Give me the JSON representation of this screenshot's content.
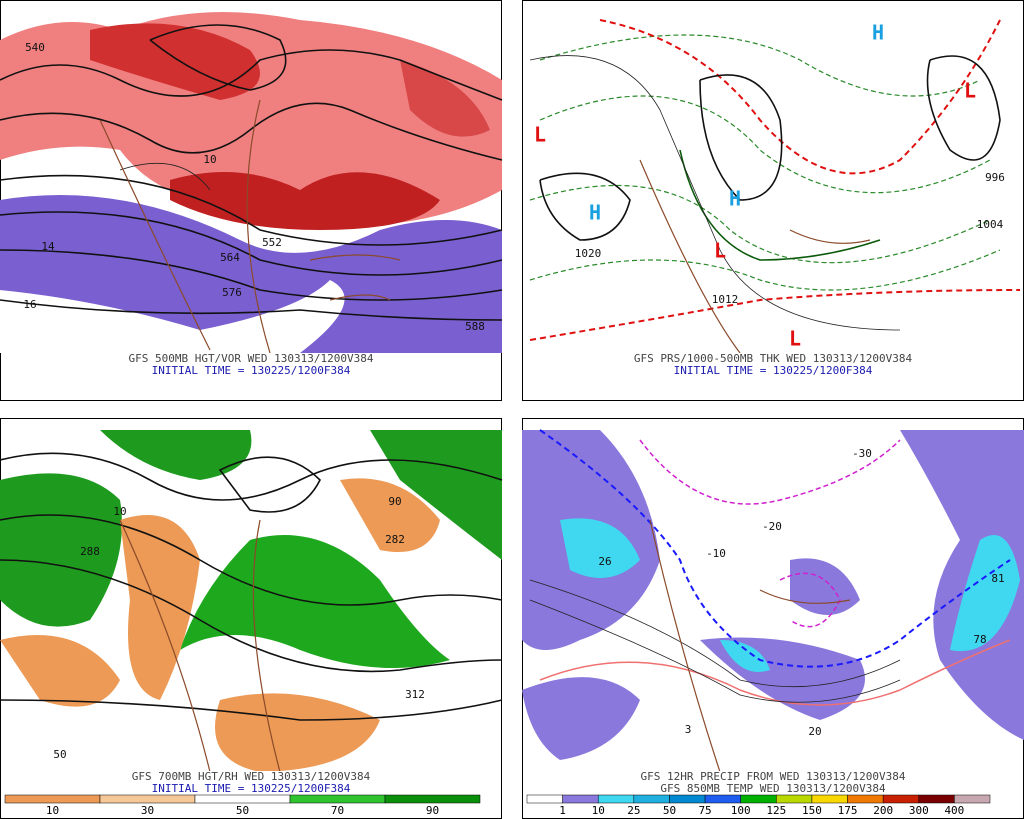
{
  "panels": [
    {
      "caption": "GFS 500MB HGT/VOR WED 130313/1200V384",
      "initial": "INITIAL TIME = 130225/1200F384",
      "map_labels": [
        "540",
        "552",
        "564",
        "576",
        "588",
        "10",
        "14",
        "16"
      ]
    },
    {
      "caption": "GFS PRS/1000-500MB THK WED 130313/1200V384",
      "initial": "INITIAL TIME = 130225/1200F384",
      "map_labels": [
        "H",
        "H",
        "H",
        "L",
        "L",
        "L",
        "L",
        "1020",
        "1012",
        "1004",
        "996"
      ]
    },
    {
      "caption": "GFS 700MB HGT/RH WED 130313/1200V384",
      "initial": "INITIAL TIME = 130225/1200F384",
      "map_labels": [
        "288",
        "282",
        "312",
        "10",
        "50",
        "90"
      ]
    },
    {
      "caption": "GFS 12HR PRECIP FROM WED 130313/1200V384",
      "initial": "GFS 850MB TEMP WED 130313/1200V384",
      "map_labels": [
        "-10",
        "-20",
        "-30",
        "3",
        "20",
        "81",
        "78",
        "26"
      ]
    }
  ],
  "rh_legend": [
    {
      "label": "10",
      "color": "#ec9a55"
    },
    {
      "label": "30",
      "color": "#f6c898"
    },
    {
      "label": "50",
      "color": "#ffffff"
    },
    {
      "label": "70",
      "color": "#2fc42f"
    },
    {
      "label": "90",
      "color": "#0a8f0a"
    }
  ],
  "precip_legend": [
    {
      "label": "1",
      "color": "#ffffff"
    },
    {
      "label": "10",
      "color": "#8a78dc"
    },
    {
      "label": "25",
      "color": "#40d8f0"
    },
    {
      "label": "50",
      "color": "#20b0e0"
    },
    {
      "label": "75",
      "color": "#0088d0"
    },
    {
      "label": "100",
      "color": "#1e5cf0"
    },
    {
      "label": "125",
      "color": "#00b000"
    },
    {
      "label": "150",
      "color": "#b8d800"
    },
    {
      "label": "175",
      "color": "#f8d800"
    },
    {
      "label": "200",
      "color": "#f07800"
    },
    {
      "label": "300",
      "color": "#c82000"
    },
    {
      "label": "400",
      "color": "#780000"
    },
    {
      "label": null,
      "color": "#c8a8b0"
    }
  ]
}
